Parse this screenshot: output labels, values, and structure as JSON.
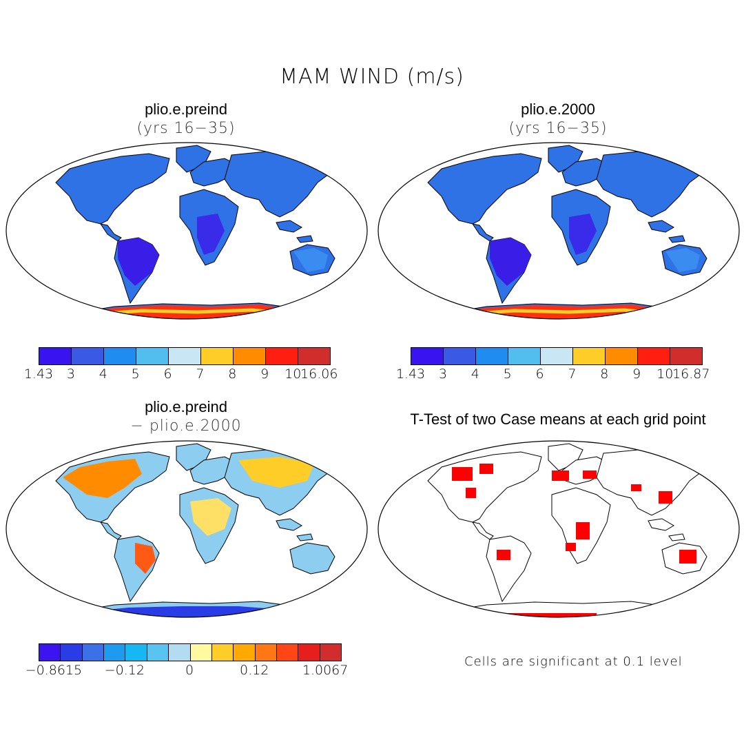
{
  "figure": {
    "title": "MAM WIND (m/s)"
  },
  "panels": [
    {
      "title": "plio.e.preind",
      "subtitle": "(yrs 16−35)",
      "colorbar": {
        "colors": [
          "#3a14f0",
          "#3a5ae6",
          "#1e8cf0",
          "#52bef0",
          "#c8e6f4",
          "#ffcd28",
          "#ff8c00",
          "#ff1e10",
          "#d22d2d"
        ],
        "tick_labels": [
          "1.43",
          "3",
          "4",
          "5",
          "6",
          "7",
          "8",
          "9",
          "10",
          "16.06"
        ]
      }
    },
    {
      "title": "plio.e.2000",
      "subtitle": "(yrs 16−35)",
      "colorbar": {
        "colors": [
          "#3a14f0",
          "#3a5ae6",
          "#1e8cf0",
          "#52bef0",
          "#c8e6f4",
          "#ffcd28",
          "#ff8c00",
          "#ff1e10",
          "#d22d2d"
        ],
        "tick_labels": [
          "1.43",
          "3",
          "4",
          "5",
          "6",
          "7",
          "8",
          "9",
          "10",
          "16.87"
        ]
      }
    },
    {
      "title": "plio.e.preind",
      "subtitle": "− plio.e.2000",
      "colorbar": {
        "colors": [
          "#3c14f0",
          "#2a3ce6",
          "#3c70e6",
          "#1e9aee",
          "#16b8f4",
          "#5ac4f0",
          "#b4dcf0",
          "#fffaa0",
          "#ffcd28",
          "#ffaa00",
          "#ff7814",
          "#ff4614",
          "#e61e1e",
          "#d22d2d"
        ],
        "tick_labels": [
          "−0.8615",
          "−0.12",
          "0",
          "0.12",
          "1.0067"
        ]
      }
    },
    {
      "title": "T-Test of two Case means at each grid point",
      "note": "Cells are significant at 0.1 level",
      "significance_color": "#ff0000"
    }
  ]
}
